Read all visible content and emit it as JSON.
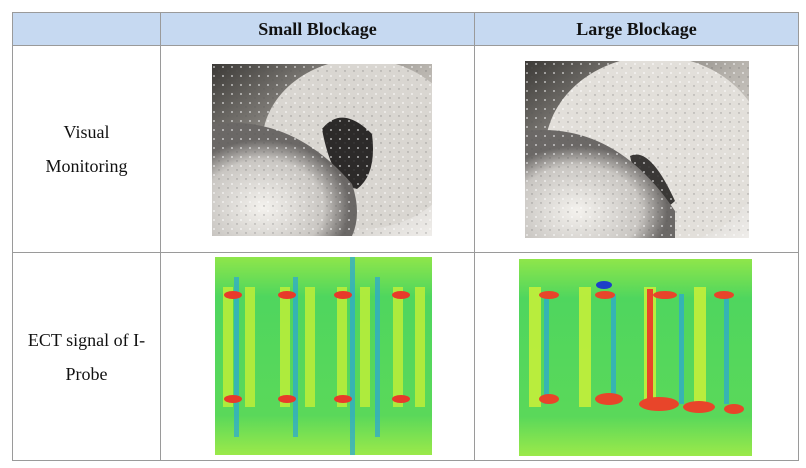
{
  "table": {
    "header": [
      "Small Blockage",
      "Large Blockage"
    ],
    "rows": [
      {
        "label": "Visual Monitoring"
      },
      {
        "label": "ECT signal of I-Probe"
      }
    ]
  }
}
